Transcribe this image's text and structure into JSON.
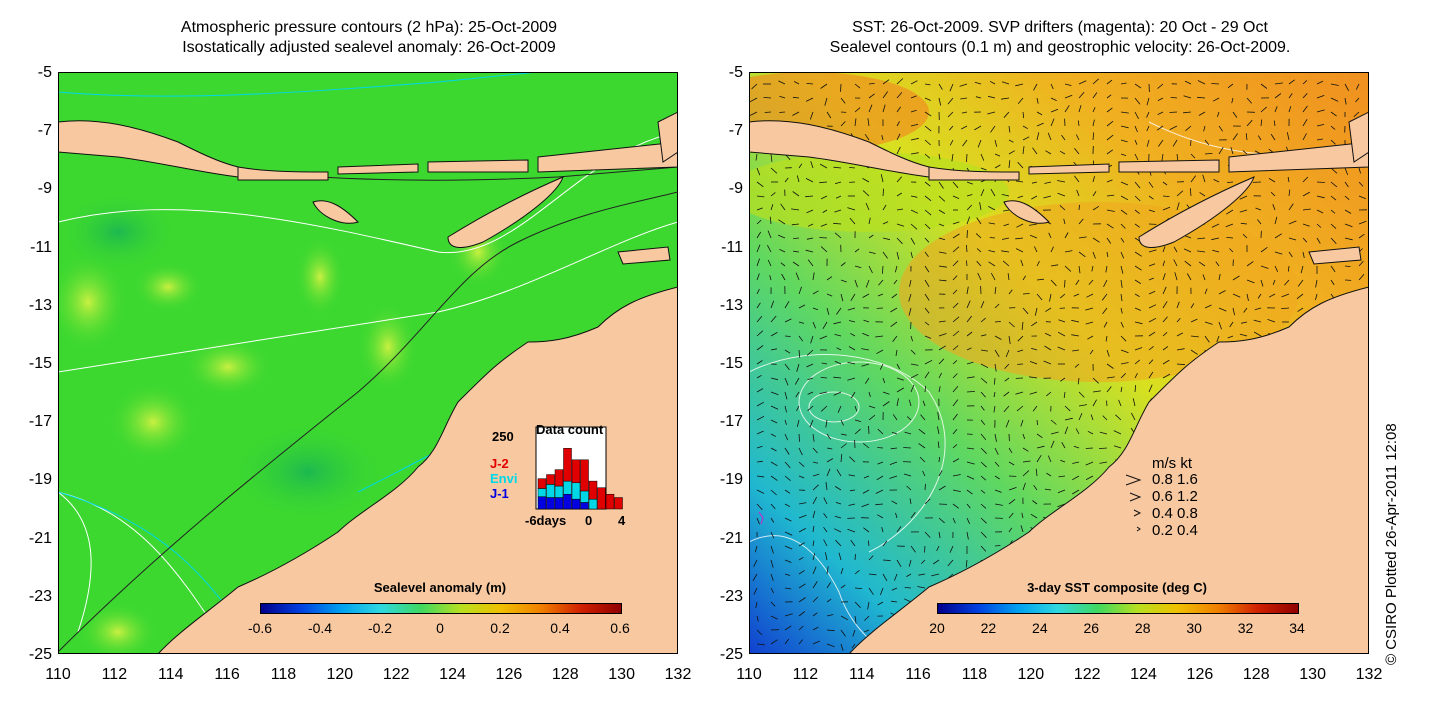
{
  "left": {
    "title_line1": "Atmospheric pressure contours (2 hPa): 25-Oct-2009",
    "title_line2": "Isostatically adjusted sealevel anomaly: 26-Oct-2009",
    "colorbar_title": "Sealevel anomaly (m)",
    "colorbar_ticks": [
      "-0.6",
      "-0.4",
      "-0.2",
      "0",
      "0.2",
      "0.4",
      "0.6"
    ],
    "inset": {
      "title": "Data count",
      "ymax": "250",
      "series_labels": [
        {
          "text": "J-2",
          "color": "#e00000"
        },
        {
          "text": "Envi",
          "color": "#00d8e8"
        },
        {
          "text": "J-1",
          "color": "#0000e0"
        }
      ],
      "x_labels": [
        "-6days",
        "0",
        "4"
      ],
      "bars": [
        {
          "j1": 0.15,
          "envi": 0.1,
          "j2": 0.12
        },
        {
          "j1": 0.14,
          "envi": 0.16,
          "j2": 0.12
        },
        {
          "j1": 0.14,
          "envi": 0.14,
          "j2": 0.2
        },
        {
          "j1": 0.18,
          "envi": 0.16,
          "j2": 0.4
        },
        {
          "j1": 0.12,
          "envi": 0.2,
          "j2": 0.28
        },
        {
          "j1": 0.08,
          "envi": 0.14,
          "j2": 0.38
        },
        {
          "j1": 0.0,
          "envi": 0.12,
          "j2": 0.22
        },
        {
          "j1": 0.0,
          "envi": 0.0,
          "j2": 0.26
        },
        {
          "j1": 0.0,
          "envi": 0.0,
          "j2": 0.18
        },
        {
          "j1": 0.0,
          "envi": 0.0,
          "j2": 0.14
        }
      ]
    }
  },
  "right": {
    "title_line1": "SST: 26-Oct-2009. SVP drifters (magenta): 20 Oct - 29 Oct",
    "title_line2": "Sealevel contours (0.1 m) and geostrophic velocity: 26-Oct-2009.",
    "colorbar_title": "3-day SST composite (deg C)",
    "colorbar_ticks": [
      "20",
      "22",
      "24",
      "26",
      "28",
      "30",
      "32",
      "34"
    ],
    "velocity_legend": {
      "header": "m/s  kt",
      "rows": [
        "0.8  1.6",
        "0.6  1.2",
        "0.4  0.8",
        "0.2  0.4"
      ]
    }
  },
  "axes": {
    "y_ticks": [
      "-5",
      "-7",
      "-9",
      "-11",
      "-13",
      "-15",
      "-17",
      "-19",
      "-21",
      "-23",
      "-25"
    ],
    "x_ticks": [
      "110",
      "112",
      "114",
      "116",
      "118",
      "120",
      "122",
      "124",
      "126",
      "128",
      "130",
      "132"
    ]
  },
  "copyright": "© CSIRO Plotted 26-Apr-2011 12:08",
  "colors": {
    "land": "#f8c8a0",
    "sea_left": "#3cd830",
    "sea_right": "#b8e020",
    "highlight": "#a8e830"
  }
}
